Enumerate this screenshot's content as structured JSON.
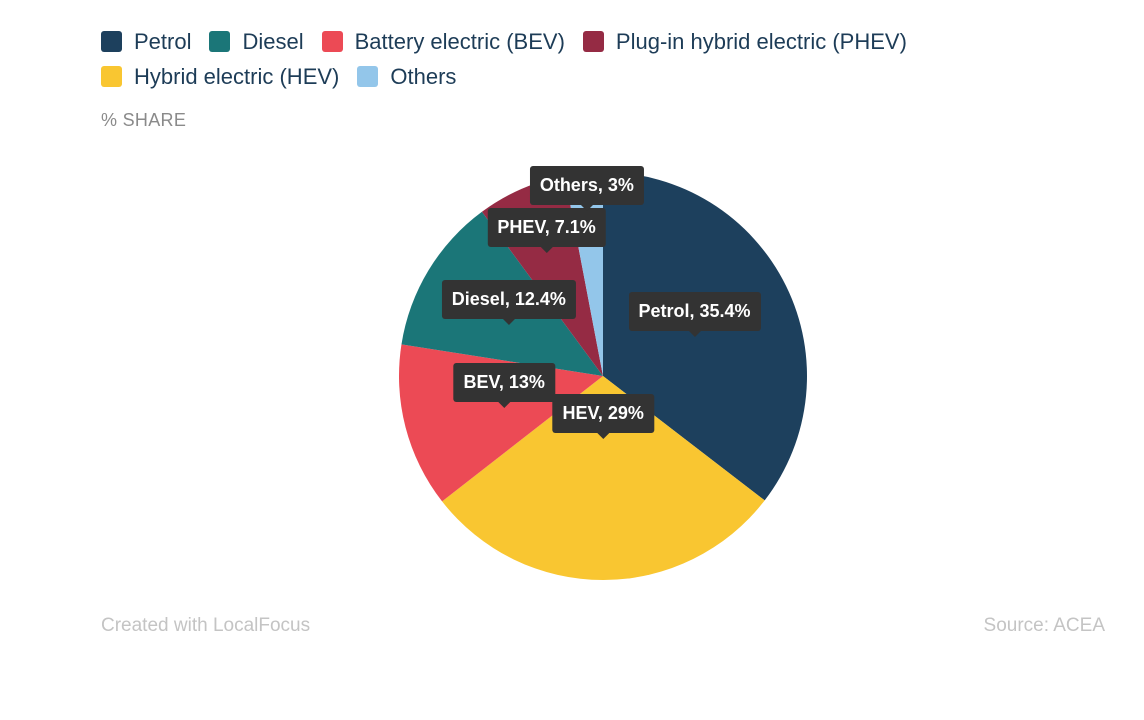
{
  "chart_data": {
    "type": "pie",
    "ylabel": "% SHARE",
    "legend_position": "top-left",
    "series": [
      {
        "name": "Petrol",
        "short": "Petrol",
        "value": 35.4,
        "color": "#1d405d"
      },
      {
        "name": "Hybrid electric (HEV)",
        "short": "HEV",
        "value": 29,
        "color": "#f9c631"
      },
      {
        "name": "Battery electric (BEV)",
        "short": "BEV",
        "value": 13,
        "color": "#ec4a55"
      },
      {
        "name": "Diesel",
        "short": "Diesel",
        "value": 12.4,
        "color": "#1b7678"
      },
      {
        "name": "Plug-in hybrid electric (PHEV)",
        "short": "PHEV",
        "value": 7.1,
        "color": "#952b44"
      },
      {
        "name": "Others",
        "short": "Others",
        "value": 3,
        "color": "#93c6ea"
      }
    ],
    "data_labels": [
      "Petrol, 35.4%",
      "HEV, 29%",
      "BEV, 13%",
      "Diesel, 12.4%",
      "PHEV, 7.1%",
      "Others, 3%"
    ]
  },
  "legend": {
    "row1": [
      {
        "label": "Petrol",
        "color": "#1d405d"
      },
      {
        "label": "Diesel",
        "color": "#1b7678"
      },
      {
        "label": "Battery electric (BEV)",
        "color": "#ec4a55"
      },
      {
        "label": "Plug-in hybrid electric (PHEV)",
        "color": "#952b44"
      }
    ],
    "row2": [
      {
        "label": "Hybrid electric (HEV)",
        "color": "#f9c631"
      },
      {
        "label": "Others",
        "color": "#93c6ea"
      }
    ]
  },
  "footer": {
    "credit": "Created with LocalFocus",
    "source": "Source:  ACEA"
  }
}
